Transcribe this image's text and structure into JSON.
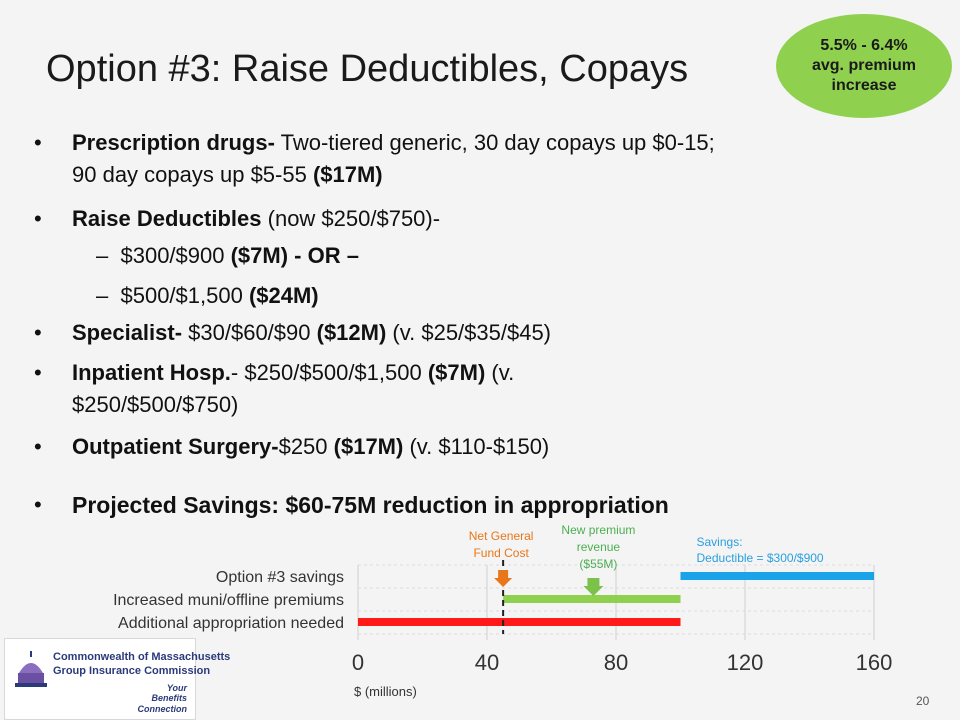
{
  "slide": {
    "title": "Option #3:  Raise Deductibles, Copays",
    "badge": [
      "5.5% - 6.4%",
      "avg. premium",
      "increase"
    ],
    "page_number": "20"
  },
  "bullets": {
    "rx": {
      "bold": "Prescription drugs-",
      "rest": " Two-tiered generic, 30 day copays up $0-15;",
      "line2_plain": "90 day copays up $5-55   ",
      "line2_bold": "($17M)"
    },
    "deduct": {
      "bold": "Raise Deductibles",
      "rest": " (now $250/$750)-"
    },
    "sub1": {
      "dash": "–",
      "plain": "$300/$900   ",
      "bold": "($7M)  - OR –"
    },
    "sub2": {
      "dash": "–",
      "plain": "$500/$1,500   ",
      "bold": "($24M)"
    },
    "spec": {
      "bold": "Specialist-",
      "plain": " $30/$60/$90   ",
      "bold2": "($12M)",
      "rest": " (v. $25/$35/$45)"
    },
    "inpat": {
      "bold": "Inpatient Hosp.",
      "plain": "- $250/$500/$1,500   ",
      "bold2": "($7M)",
      "rest": " (v.",
      "line2": "$250/$500/$750)"
    },
    "outpat": {
      "bold": "Outpatient Surgery-",
      "plain": "$250   ",
      "bold2": "($17M)",
      "rest": " (v. $110-$150)"
    },
    "proj": {
      "bold": "Projected Savings:  $60-75M reduction in appropriation"
    }
  },
  "chart_data": {
    "type": "bar",
    "orientation": "horizontal",
    "categories": [
      "Option #3 savings",
      "Increased muni/offline premiums",
      "Additional appropriation needed"
    ],
    "bars": [
      {
        "category": "Option #3 savings",
        "start": 100,
        "end": 160,
        "color": "#1aa3e8"
      },
      {
        "category": "Increased muni/offline premiums",
        "start": 45,
        "end": 100,
        "color": "#8fd14f"
      },
      {
        "category": "Additional appropriation needed",
        "start": 0,
        "end": 100,
        "color": "#ff1a1a"
      }
    ],
    "xlim": [
      0,
      160
    ],
    "xticks": [
      0,
      40,
      80,
      120,
      160
    ],
    "xlabel": "$ (millions)",
    "grid": true,
    "reference_line": {
      "x": 45
    },
    "annotations": {
      "net": {
        "lines": [
          "Net General",
          "Fund Cost"
        ],
        "x": 45,
        "color": "#e8761a"
      },
      "premium": {
        "lines": [
          "New premium",
          "revenue",
          "($55M)"
        ],
        "x": 73,
        "color": "#4caf50"
      },
      "savings": {
        "lines": [
          "Savings:",
          "Deductible = $300/$900"
        ],
        "x": 100,
        "color": "#2a9fe0"
      }
    }
  },
  "logo": {
    "name_line1": "Commonwealth of Massachusetts",
    "name_line2": "Group Insurance Commission",
    "tagline": [
      "Your",
      "Benefits",
      "Connection"
    ]
  },
  "colors": {
    "badge": "#8fd14f",
    "title": "#1a1a1a",
    "logo": "#2b3a7a"
  }
}
